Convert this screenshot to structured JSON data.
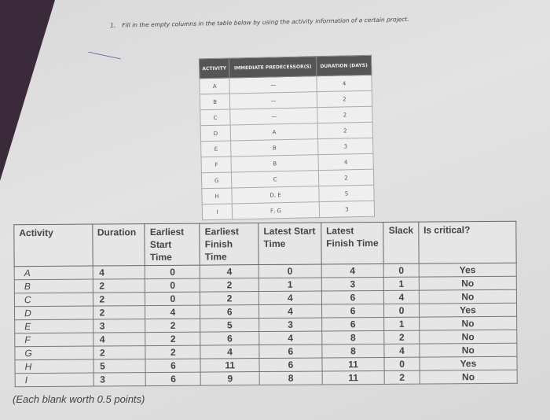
{
  "question": {
    "number": "1.",
    "text": "Fill in the empty columns in the table below by using the activity information of a certain project."
  },
  "given_table": {
    "headers": [
      "ACTIVITY",
      "IMMEDIATE PREDECESSOR(S)",
      "DURATION (DAYS)"
    ],
    "rows": [
      [
        "A",
        "—",
        "4"
      ],
      [
        "B",
        "—",
        "2"
      ],
      [
        "C",
        "—",
        "2"
      ],
      [
        "D",
        "A",
        "2"
      ],
      [
        "E",
        "B",
        "3"
      ],
      [
        "F",
        "B",
        "4"
      ],
      [
        "G",
        "C",
        "2"
      ],
      [
        "H",
        "D, E",
        "5"
      ],
      [
        "I",
        "F, G",
        "3"
      ]
    ]
  },
  "answer_table": {
    "headers": [
      "Activity",
      "Duration",
      "Earliest Start Time",
      "Earliest Finish Time",
      "Latest Start Time",
      "Latest Finish Time",
      "Slack",
      "Is critical?"
    ],
    "rows": [
      [
        "A",
        "4",
        "0",
        "4",
        "0",
        "4",
        "0",
        "Yes"
      ],
      [
        "B",
        "2",
        "0",
        "2",
        "1",
        "3",
        "1",
        "No"
      ],
      [
        "C",
        "2",
        "0",
        "2",
        "4",
        "6",
        "4",
        "No"
      ],
      [
        "D",
        "2",
        "4",
        "6",
        "4",
        "6",
        "0",
        "Yes"
      ],
      [
        "E",
        "3",
        "2",
        "5",
        "3",
        "6",
        "1",
        "No"
      ],
      [
        "F",
        "4",
        "2",
        "6",
        "4",
        "8",
        "2",
        "No"
      ],
      [
        "G",
        "2",
        "2",
        "4",
        "6",
        "8",
        "4",
        "No"
      ],
      [
        "H",
        "5",
        "6",
        "11",
        "6",
        "11",
        "0",
        "Yes"
      ],
      [
        "I",
        "3",
        "6",
        "9",
        "8",
        "11",
        "2",
        "No"
      ]
    ]
  },
  "note": "(Each blank worth 0.5 points)"
}
